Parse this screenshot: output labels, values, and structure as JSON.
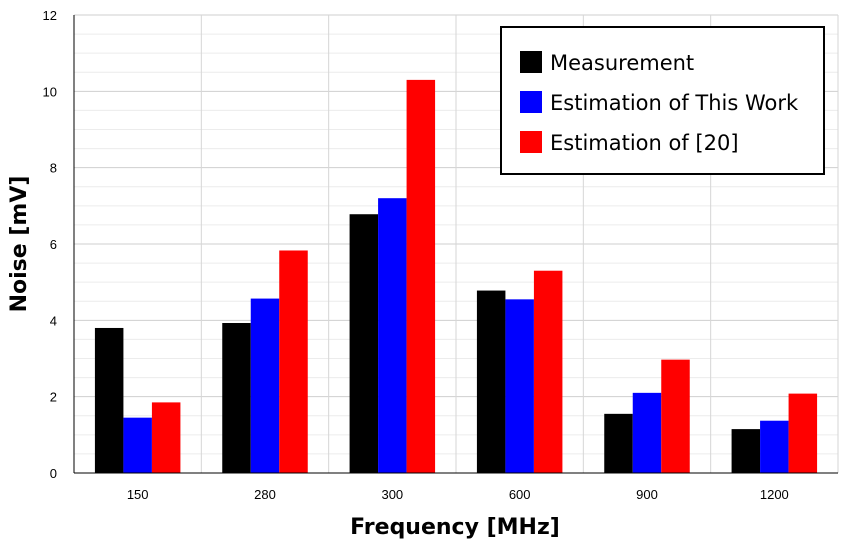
{
  "chart_data": {
    "type": "bar",
    "xlabel": "Frequency [MHz]",
    "ylabel": "Noise [mV]",
    "ylim": [
      0,
      12
    ],
    "yticks": [
      0,
      2,
      4,
      6,
      8,
      10,
      12
    ],
    "categories": [
      "150",
      "280",
      "300",
      "600",
      "900",
      "1200"
    ],
    "grid": true,
    "legend_position": "top-right",
    "series": [
      {
        "name": "Measurement",
        "color": "#000000",
        "values": [
          3.8,
          3.93,
          6.78,
          4.78,
          1.55,
          1.15
        ]
      },
      {
        "name": "Estimation of This Work",
        "color": "#0000ff",
        "values": [
          1.45,
          4.57,
          7.2,
          4.55,
          2.1,
          1.37
        ]
      },
      {
        "name": "Estimation of [20]",
        "color": "#ff0000",
        "values": [
          1.85,
          5.83,
          10.3,
          5.3,
          2.97,
          2.08
        ]
      }
    ]
  }
}
